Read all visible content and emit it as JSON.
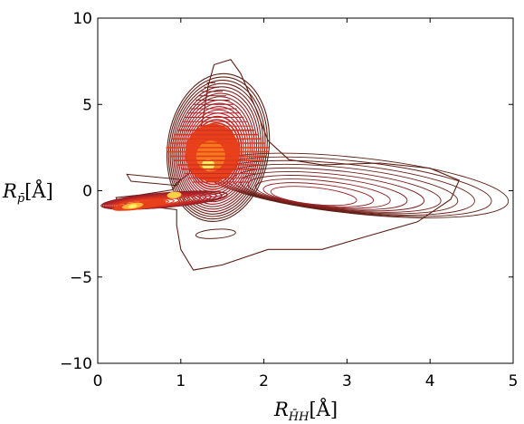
{
  "chart_data": {
    "type": "contour",
    "xlabel": "R_{H̄H}[Å]",
    "ylabel": "R_{p̄}[Å]",
    "xlim": [
      0,
      5
    ],
    "ylim": [
      -10,
      10
    ],
    "xticks": [
      "0",
      "1",
      "2",
      "3",
      "4",
      "5"
    ],
    "yticks": [
      "10",
      "5",
      "0",
      "−5",
      "−10"
    ],
    "grid": false,
    "colormap": "hot",
    "colors": {
      "outer_contour": "#5a1f14",
      "mid_contour": "#b0202a",
      "inner_contour": "#e8401a",
      "peak": "#ffef60"
    },
    "density_peaks": [
      {
        "x": 1.3,
        "y": 2.0,
        "relative_density": 0.85
      },
      {
        "x": 0.5,
        "y": -0.9,
        "relative_density": 1.0
      }
    ]
  }
}
